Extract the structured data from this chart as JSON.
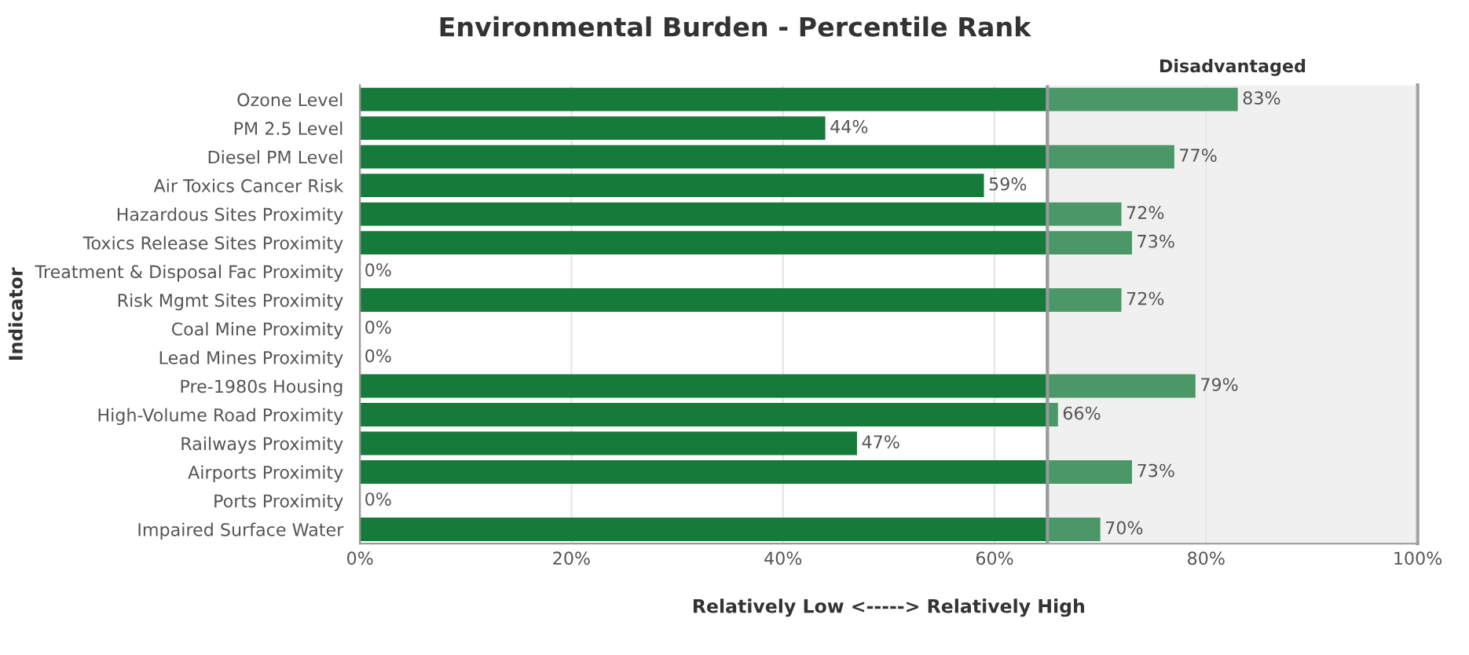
{
  "chart_data": {
    "type": "bar",
    "orientation": "horizontal",
    "title": "Environmental Burden - Percentile Rank",
    "xlabel": "Relatively Low <-----> Relatively High",
    "ylabel": "Indicator",
    "categories": [
      "Ozone Level",
      "PM 2.5 Level",
      "Diesel PM Level",
      "Air Toxics Cancer Risk",
      "Hazardous Sites Proximity",
      "Toxics Release Sites Proximity",
      "Treatment & Disposal Fac Proximity",
      "Risk Mgmt Sites Proximity",
      "Coal Mine Proximity",
      "Lead Mines Proximity",
      "Pre-1980s Housing",
      "High-Volume Road Proximity",
      "Railways Proximity",
      "Airports Proximity",
      "Ports Proximity",
      "Impaired Surface Water"
    ],
    "values": [
      83,
      44,
      77,
      59,
      72,
      73,
      0,
      72,
      0,
      0,
      79,
      66,
      47,
      73,
      0,
      70
    ],
    "value_labels": [
      "83%",
      "44%",
      "77%",
      "59%",
      "72%",
      "73%",
      "0%",
      "72%",
      "0%",
      "0%",
      "79%",
      "66%",
      "47%",
      "73%",
      "0%",
      "70%"
    ],
    "color": "#167a3a",
    "xlim": [
      0,
      100
    ],
    "xticks": [
      {
        "value": 0,
        "label": "0%"
      },
      {
        "value": 20,
        "label": "20%"
      },
      {
        "value": 40,
        "label": "40%"
      },
      {
        "value": 60,
        "label": "60%"
      },
      {
        "value": 80,
        "label": "80%"
      },
      {
        "value": 100,
        "label": "100%"
      }
    ],
    "bands": [
      {
        "axis": "x",
        "from": 65,
        "to": 100,
        "label": "Disadvantaged",
        "color": "#f0f0f0"
      }
    ],
    "ref_lines": [
      {
        "axis": "x",
        "value": 65,
        "color": "#999999"
      }
    ],
    "grid": "x",
    "legend": false
  }
}
